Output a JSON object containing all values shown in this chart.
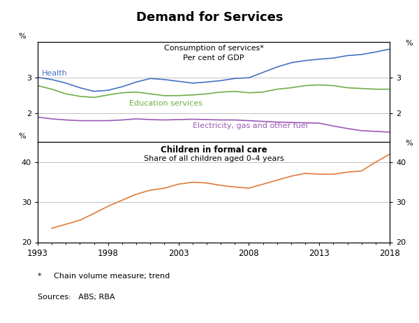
{
  "title": "Demand for Services",
  "title_fontsize": 13,
  "top_panel": {
    "title_line1": "Consumption of services*",
    "title_line2": "Per cent of GDP",
    "ylim": [
      1.2,
      4.0
    ],
    "yticks": [
      2,
      3
    ],
    "ylabel": "%",
    "health_label": "Health",
    "education_label": "Education services",
    "electricity_label": "Electricity, gas and other fuel",
    "health_color": "#4472C4",
    "education_color": "#70AD47",
    "electricity_color": "#9B59B6",
    "health_x": [
      1993,
      1994,
      1995,
      1996,
      1997,
      1998,
      1999,
      2000,
      2001,
      2002,
      2003,
      2004,
      2005,
      2006,
      2007,
      2008,
      2009,
      2010,
      2011,
      2012,
      2013,
      2014,
      2015,
      2016,
      2017,
      2018
    ],
    "health_y": [
      3.01,
      2.95,
      2.85,
      2.72,
      2.62,
      2.65,
      2.75,
      2.88,
      2.98,
      2.95,
      2.9,
      2.85,
      2.88,
      2.92,
      2.98,
      3.0,
      3.15,
      3.3,
      3.42,
      3.48,
      3.52,
      3.55,
      3.62,
      3.65,
      3.72,
      3.8
    ],
    "education_x": [
      1993,
      1994,
      1995,
      1996,
      1997,
      1998,
      1999,
      2000,
      2001,
      2002,
      2003,
      2004,
      2005,
      2006,
      2007,
      2008,
      2009,
      2010,
      2011,
      2012,
      2013,
      2014,
      2015,
      2016,
      2017,
      2018
    ],
    "education_y": [
      2.78,
      2.68,
      2.55,
      2.48,
      2.45,
      2.52,
      2.58,
      2.6,
      2.55,
      2.5,
      2.5,
      2.52,
      2.55,
      2.6,
      2.62,
      2.58,
      2.6,
      2.68,
      2.72,
      2.78,
      2.8,
      2.78,
      2.72,
      2.7,
      2.68,
      2.68
    ],
    "electricity_x": [
      1993,
      1994,
      1995,
      1996,
      1997,
      1998,
      1999,
      2000,
      2001,
      2002,
      2003,
      2004,
      2005,
      2006,
      2007,
      2008,
      2009,
      2010,
      2011,
      2012,
      2013,
      2014,
      2015,
      2016,
      2017,
      2018
    ],
    "electricity_y": [
      1.9,
      1.85,
      1.82,
      1.8,
      1.8,
      1.8,
      1.82,
      1.85,
      1.83,
      1.82,
      1.83,
      1.84,
      1.83,
      1.82,
      1.82,
      1.8,
      1.78,
      1.76,
      1.75,
      1.74,
      1.73,
      1.65,
      1.58,
      1.52,
      1.5,
      1.48
    ]
  },
  "bottom_panel": {
    "title_line1": "Children in formal care",
    "title_line2": "Share of all children aged 0–4 years",
    "ylim": [
      20,
      45
    ],
    "yticks": [
      20,
      30,
      40
    ],
    "ylabel": "%",
    "care_color": "#E07B39",
    "care_x": [
      1994,
      1996,
      1997,
      1998,
      1999,
      2000,
      2001,
      2002,
      2003,
      2004,
      2005,
      2006,
      2007,
      2008,
      2009,
      2010,
      2011,
      2012,
      2013,
      2014,
      2015,
      2016,
      2017,
      2018
    ],
    "care_y": [
      23.5,
      25.5,
      27.2,
      29.0,
      30.5,
      32.0,
      33.0,
      33.5,
      34.5,
      35.0,
      34.8,
      34.2,
      33.8,
      33.5,
      34.5,
      35.5,
      36.5,
      37.2,
      37.0,
      37.0,
      37.5,
      37.8,
      40.0,
      42.0
    ]
  },
  "xlim": [
    1993,
    2018
  ],
  "xticks": [
    1993,
    1998,
    2003,
    2008,
    2013,
    2018
  ],
  "xticklabels": [
    "1993",
    "1998",
    "2003",
    "2008",
    "2013",
    "2018"
  ],
  "footnote1": "*     Chain volume measure; trend",
  "footnote2": "Sources:   ABS; RBA",
  "bg_color": "#FFFFFF",
  "grid_color": "#AAAAAA",
  "line_width": 1.2
}
